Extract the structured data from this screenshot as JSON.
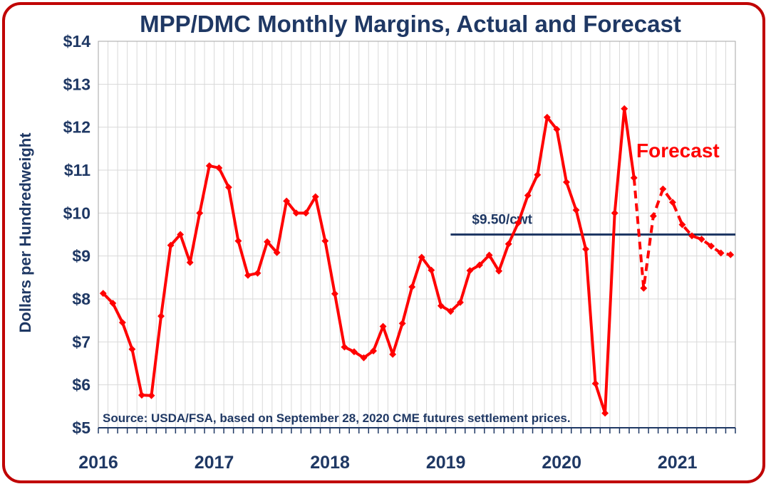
{
  "chart_data": {
    "type": "line",
    "title": "MPP/DMC Monthly Margins, Actual and Forecast",
    "ylabel": "Dollars per Hundredweight",
    "xlabel": "",
    "ylim": [
      5,
      14
    ],
    "y_ticks": [
      "$5",
      "$6",
      "$7",
      "$8",
      "$9",
      "$10",
      "$11",
      "$12",
      "$13",
      "$14"
    ],
    "x_ticks": [
      "2016",
      "2017",
      "2018",
      "2019",
      "2020",
      "2021"
    ],
    "x_range": [
      "2016-01",
      "2021-06"
    ],
    "grid": true,
    "months": [
      "2016-01",
      "2016-02",
      "2016-03",
      "2016-04",
      "2016-05",
      "2016-06",
      "2016-07",
      "2016-08",
      "2016-09",
      "2016-10",
      "2016-11",
      "2016-12",
      "2017-01",
      "2017-02",
      "2017-03",
      "2017-04",
      "2017-05",
      "2017-06",
      "2017-07",
      "2017-08",
      "2017-09",
      "2017-10",
      "2017-11",
      "2017-12",
      "2018-01",
      "2018-02",
      "2018-03",
      "2018-04",
      "2018-05",
      "2018-06",
      "2018-07",
      "2018-08",
      "2018-09",
      "2018-10",
      "2018-11",
      "2018-12",
      "2019-01",
      "2019-02",
      "2019-03",
      "2019-04",
      "2019-05",
      "2019-06",
      "2019-07",
      "2019-08",
      "2019-09",
      "2019-10",
      "2019-11",
      "2019-12",
      "2020-01",
      "2020-02",
      "2020-03",
      "2020-04",
      "2020-05",
      "2020-06",
      "2020-07",
      "2020-08",
      "2020-09",
      "2020-10",
      "2020-11",
      "2020-12",
      "2021-01",
      "2021-02",
      "2021-03",
      "2021-04",
      "2021-05",
      "2021-06"
    ],
    "series": [
      {
        "values": [
          8.13,
          7.9,
          7.45,
          6.83,
          5.76,
          5.75,
          7.6,
          9.25,
          9.5,
          8.85,
          10.0,
          11.1,
          11.05,
          10.6,
          9.35,
          8.55,
          8.6,
          9.33,
          9.08,
          10.28,
          10.0,
          10.0,
          10.38,
          9.35,
          8.12,
          6.88,
          6.77,
          6.63,
          6.79,
          7.36,
          6.71,
          7.43,
          8.28,
          8.97,
          8.67,
          7.84,
          7.71,
          7.92,
          8.66,
          8.79,
          9.02,
          8.65,
          9.28,
          9.77,
          10.41,
          10.89,
          12.23,
          11.95,
          10.72,
          10.07,
          9.16,
          6.03,
          5.34,
          10.0,
          12.43,
          10.82
        ],
        "color": "#ff0000",
        "style": "solid"
      },
      {
        "start_month": "2020-08",
        "values": [
          10.82,
          8.25,
          9.93,
          10.56,
          10.25,
          9.73,
          9.47,
          9.39,
          9.23,
          9.07,
          9.03
        ],
        "color": "#ff0000",
        "style": "dashed"
      }
    ],
    "reference_line": {
      "value": 9.5,
      "label": "$9.50/cwt",
      "start_month": "2019-01",
      "end_month": "2021-06",
      "color": "#1f3864"
    },
    "annotations": [
      {
        "text": "Forecast",
        "color": "#ff0000"
      },
      {
        "text": "Source:  USDA/FSA, based on September 28, 2020 CME futures settlement prices.",
        "color": "#1f3864"
      }
    ]
  }
}
